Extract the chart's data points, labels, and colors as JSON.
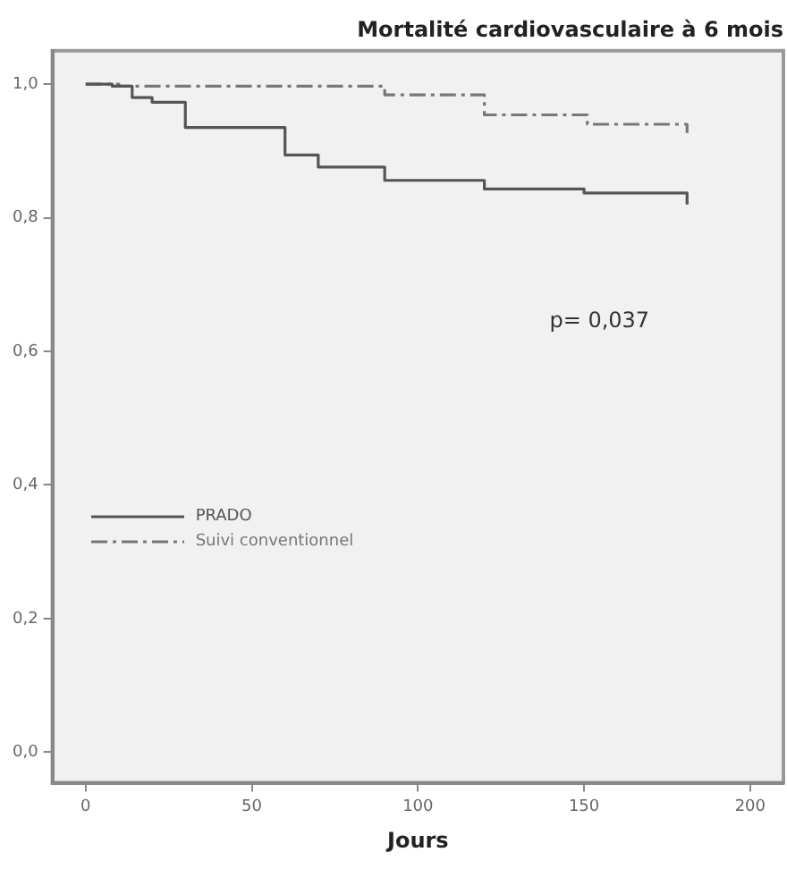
{
  "chart_data": {
    "type": "step",
    "title": "Mortalité cardiovasculaire à 6 mois",
    "xlabel": "Jours",
    "series": [
      {
        "name": "PRADO",
        "color": "#555555",
        "line_style": "solid",
        "x": [
          0,
          8,
          14,
          20,
          30,
          60,
          70,
          90,
          120,
          150,
          181
        ],
        "values": [
          1,
          0.997,
          0.98,
          0.973,
          0.935,
          0.894,
          0.876,
          0.856,
          0.843,
          0.837,
          0.82
        ]
      },
      {
        "name": "Suivi conventionnel",
        "color": "#777777",
        "line_style": "dashed",
        "x": [
          0,
          10,
          90,
          120,
          151,
          181
        ],
        "values": [
          1,
          0.997,
          0.984,
          0.954,
          0.94,
          0.927
        ]
      }
    ],
    "xlim": [
      -10,
      210
    ],
    "xticks": [
      0,
      50,
      100,
      150,
      200
    ],
    "ylim": [
      -0.046,
      1.05
    ],
    "yticks": [
      {
        "value": 0,
        "label": "0,0"
      },
      {
        "value": 0.2,
        "label": "0,2"
      },
      {
        "value": 0.4,
        "label": "0,4"
      },
      {
        "value": 0.6,
        "label": "0,6"
      },
      {
        "value": 0.8,
        "label": "0,8"
      },
      {
        "value": 1,
        "label": "1,0"
      }
    ],
    "annotations": [
      "p= 0,037"
    ],
    "grid": false,
    "legend": "left",
    "marker": "none"
  }
}
